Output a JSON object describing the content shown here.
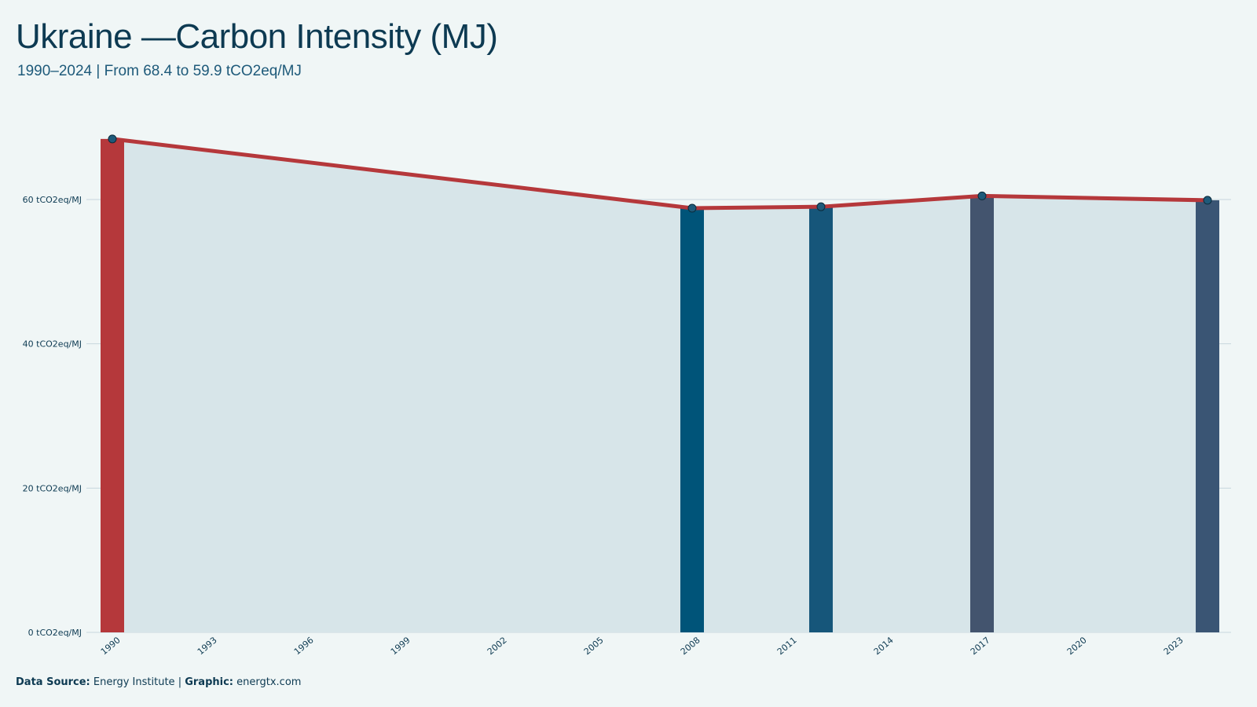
{
  "header": {
    "title": "Ukraine —Carbon Intensity (MJ)",
    "subtitle": "1990–2024 | From 68.4 to 59.9 tCO2eq/MJ"
  },
  "footer": {
    "source_label": "Data Source:",
    "source_value": "Energy Institute",
    "separator": "|",
    "graphic_label": "Graphic:",
    "graphic_value": "energtx.com"
  },
  "colors": {
    "background": "#f0f6f6",
    "area": "#d7e5e9",
    "line": "#b5383b",
    "grid": "#c7d7dd"
  },
  "chart_data": {
    "type": "line",
    "x": [
      1990,
      2008,
      2012,
      2017,
      2024
    ],
    "values": [
      68.4,
      58.8,
      59.0,
      60.5,
      59.9
    ],
    "bar_colors": [
      "#b5383b",
      "#005479",
      "#16567a",
      "#43546e",
      "#3a5574"
    ],
    "xlim": [
      1990,
      2024
    ],
    "ylim": [
      0,
      70
    ],
    "y_ticks": [
      0,
      20,
      40,
      60
    ],
    "y_tick_labels": [
      "0 tCO2eq/MJ",
      "20 tCO2eq/MJ",
      "40 tCO2eq/MJ",
      "60 tCO2eq/MJ"
    ],
    "x_ticks": [
      1990,
      1993,
      1996,
      1999,
      2002,
      2005,
      2008,
      2011,
      2014,
      2017,
      2020,
      2023
    ],
    "x_tick_labels": [
      "1990",
      "1993",
      "1996",
      "1999",
      "2002",
      "2005",
      "2008",
      "2011",
      "2014",
      "2017",
      "2020",
      "2023"
    ],
    "grid": true,
    "area_fill": true,
    "highlight_bars": true,
    "markers": true
  }
}
